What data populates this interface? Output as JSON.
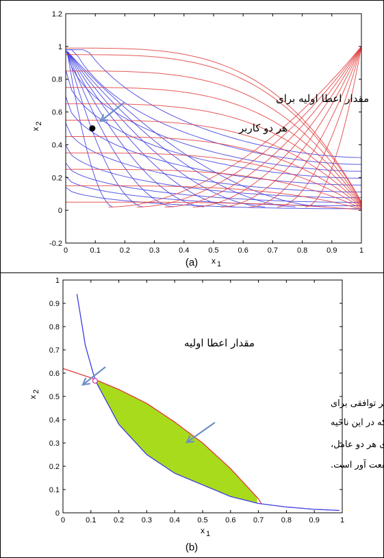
{
  "chart_data": [
    {
      "type": "line",
      "panel": "(a)",
      "xlabel": "x",
      "xlabel_sub": "1",
      "ylabel": "x",
      "ylabel_sub": "2",
      "xlim": [
        0,
        1
      ],
      "ylim": [
        -0.2,
        1.2
      ],
      "xticks": [
        "0",
        "0.1",
        "0.2",
        "0.3",
        "0.4",
        "0.5",
        "0.6",
        "0.7",
        "0.8",
        "0.9",
        "1"
      ],
      "yticks": [
        "-0.2",
        "0",
        "0.2",
        "0.4",
        "0.6",
        "0.8",
        "1",
        "1.2"
      ],
      "series": [
        {
          "color": "#e23a3a",
          "description_family": "indifference curves user 2",
          "levels": [
            0.05,
            0.15,
            0.25,
            0.35,
            0.45,
            0.55,
            0.65,
            0.75,
            0.85,
            0.95,
            0.99
          ]
        },
        {
          "color": "#3a3ae2",
          "description_family": "indifference curves user 1",
          "levels": [
            0.03,
            0.08,
            0.14,
            0.22,
            0.32,
            0.44,
            0.56,
            0.68,
            0.8,
            0.92
          ]
        }
      ],
      "points": [
        {
          "x": 0.09,
          "y": 0.5
        }
      ],
      "annotation": {
        "line1": "مقدار اعطا اولیه برای",
        "line2": "هر دو کاربر"
      }
    },
    {
      "type": "line",
      "panel": "(b)",
      "xlabel": "x",
      "xlabel_sub": "1",
      "ylabel": "x",
      "ylabel_sub": "2",
      "xlim": [
        0,
        1
      ],
      "ylim": [
        0,
        1
      ],
      "xticks": [
        "0",
        "0.1",
        "0.2",
        "0.3",
        "0.4",
        "0.5",
        "0.6",
        "0.7",
        "0.8",
        "0.9",
        "1"
      ],
      "yticks": [
        "0",
        "0.1",
        "0.2",
        "0.3",
        "0.4",
        "0.5",
        "0.6",
        "0.7",
        "0.8",
        "0.9",
        "1"
      ],
      "series": [
        {
          "color": "#e23a3a",
          "x": [
            0,
            0.1,
            0.2,
            0.3,
            0.4,
            0.5,
            0.6,
            0.7,
            0.72
          ],
          "y": [
            0.62,
            0.58,
            0.53,
            0.47,
            0.39,
            0.3,
            0.19,
            0.06,
            0.02
          ]
        },
        {
          "color": "#3a3ae2",
          "x": [
            0.05,
            0.08,
            0.115,
            0.2,
            0.3,
            0.4,
            0.5,
            0.6,
            0.7,
            0.8,
            0.9,
            1.0
          ],
          "y": [
            0.94,
            0.72,
            0.57,
            0.38,
            0.25,
            0.17,
            0.12,
            0.07,
            0.04,
            0.025,
            0.015,
            0.01
          ]
        }
      ],
      "region_fill": "#a8db1c",
      "points": [
        {
          "x": 0.115,
          "y": 0.567
        }
      ],
      "annotation_point": "مقدار اعطا اولیه",
      "annotation_region": [
        "ناحیه قرارداد: عر توافقی برای",
        "جابجایی دارایی ها که در این ناحیه",
        "قرار بگیرد، برای هر دو عامل،",
        "منفعت آور است."
      ]
    }
  ],
  "captions": {
    "a": "(a)",
    "b": "(b)"
  }
}
